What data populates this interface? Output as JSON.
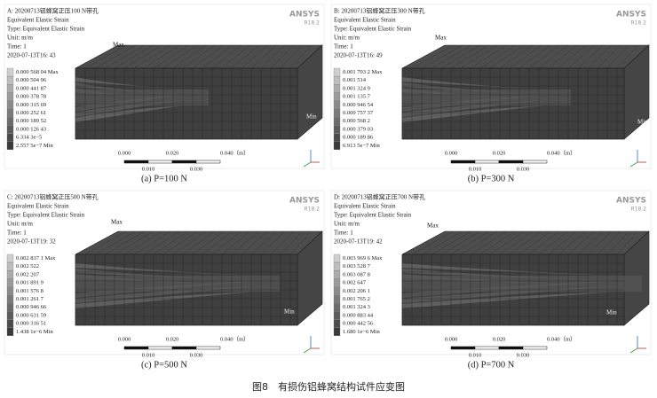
{
  "figure": {
    "caption": "图8　有损伤铝蜂窝结构试件应变图",
    "logo": "ANSYS",
    "version": "R18.2",
    "panels": [
      {
        "header": [
          "A: 20200713铝蜂窝正压100 N带孔",
          "Equivalent Elastic Strain",
          "Type: Equivalent Elastic Strain",
          "Unit: m/m",
          "Time: 1",
          "2020-07-13T16: 43"
        ],
        "legend": [
          "0.000 568 04 Max",
          "0.000 504 96",
          "0.000 441 87",
          "0.000 378 78",
          "0.000 315 69",
          "0.000 252 61",
          "0.000 189 52",
          "0.000 126 43",
          "6.334 3e−5",
          "2.557 5e−7 Min"
        ],
        "caption": "(a) P=100 N"
      },
      {
        "header": [
          "B: 20200713铝蜂窝正压300 N带孔",
          "Equivalent Elastic Strain",
          "Type: Equivalent Elastic Strain",
          "Unit: m/m",
          "Time: 1",
          "2020-07-13T16: 49"
        ],
        "legend": [
          "0.001 703 2 Max",
          "0.001 514",
          "0.001 324 9",
          "0.001 135 7",
          "0.000 946 54",
          "0.000 757 37",
          "0.000 568 2",
          "0.000 379 03",
          "0.000 189 86",
          "6.913 5e−7 Min"
        ],
        "caption": "(b) P=300 N"
      },
      {
        "header": [
          "C: 20200713铝蜂窝正压500 N带孔",
          "Equivalent Elastic Strain",
          "Type: Equivalent Elastic Strain",
          "Unit: m/m",
          "Time: 1",
          "2020-07-13T19: 32"
        ],
        "legend": [
          "0.002 837 1 Max",
          "0.002 522",
          "0.002 207",
          "0.001 891 9",
          "0.001 576 8",
          "0.001 261 7",
          "0.000 946 66",
          "0.000 631 59",
          "0.000 316 51",
          "1.438 1e−6 Min"
        ],
        "caption": "(c) P=500 N"
      },
      {
        "header": [
          "D: 20200713铝蜂窝正压700 N带孔",
          "Equivalent Elastic Strain",
          "Type: Equivalent Elastic Strain",
          "Unit: m/m",
          "Time: 1",
          "2020-07-13T19: 42"
        ],
        "legend": [
          "0.003 969 6 Max",
          "0.003 528 7",
          "0.003 087 8",
          "0.002 647",
          "0.002 206 1",
          "0.001 765 2",
          "0.001 324 3",
          "0.000 883 44",
          "0.000 442 56",
          "1.680 1e−6 Min"
        ],
        "caption": "(d) P=700 N"
      }
    ],
    "markers": {
      "max": "Max",
      "min": "Min"
    },
    "scale": {
      "top": [
        "0.000",
        "0.020",
        "0.040（m）"
      ],
      "bottom": [
        "0.010",
        "0.030"
      ]
    }
  }
}
